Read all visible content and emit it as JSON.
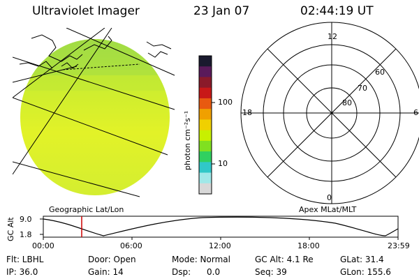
{
  "header": {
    "instrument": "Ultraviolet Imager",
    "date": "23 Jan 07",
    "time": "02:44:19 UT"
  },
  "colorbar": {
    "unit_label": "photon cm⁻²s⁻¹",
    "ticks": [
      "100",
      "10"
    ],
    "colors": [
      "#1a1a2e",
      "#5a1a5a",
      "#8a1a2a",
      "#c81818",
      "#e85a10",
      "#f0a000",
      "#f0d000",
      "#c8f000",
      "#80e020",
      "#30d060",
      "#30c8c8",
      "#a0e8e8",
      "#d8d8d8"
    ]
  },
  "image_panel": {
    "caption": "Geographic Lat/Lon",
    "fill_color": "#d8f030"
  },
  "polar_plot": {
    "caption": "Apex MLat/MLT",
    "mlt_labels": {
      "top": "12",
      "left": "18",
      "right": "6",
      "bottom": "0"
    },
    "lat_labels": [
      "60",
      "70",
      "80"
    ]
  },
  "altitude_plot": {
    "axis_label": "GC Alt",
    "y_ticks": [
      "9.0",
      "1.8"
    ],
    "time_ticks": [
      "00:00",
      "06:00",
      "12:00",
      "18:00",
      "23:59"
    ],
    "marker_time": "02:44"
  },
  "info": {
    "flt": "Flt: LBHL",
    "door": "Door: Open",
    "mode": "Mode: Normal",
    "gc_alt": "GC Alt: 4.1 Re",
    "glat": "GLat: 31.4",
    "ip": "IP: 36.0",
    "gain": "Gain: 14",
    "dsp": "Dsp:      0.0",
    "seq": "Seq: 39",
    "glon": "GLon: 155.6"
  }
}
